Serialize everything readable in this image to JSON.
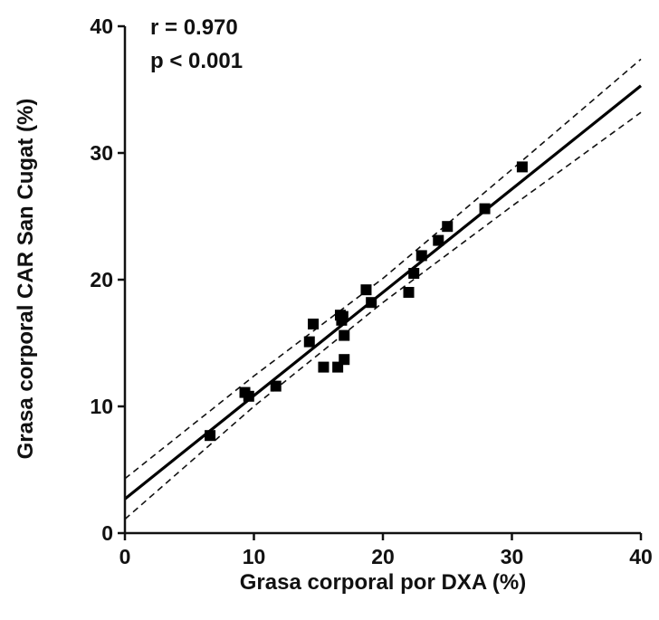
{
  "chart_data": {
    "type": "scatter",
    "xlabel": "Grasa corporal por DXA (%)",
    "ylabel": "Grasa corporal CAR San Cugat (%)",
    "xlim": [
      0,
      40
    ],
    "ylim": [
      0,
      40
    ],
    "x_ticks": [
      "0",
      "10",
      "20",
      "30",
      "40"
    ],
    "y_ticks": [
      "0",
      "10",
      "20",
      "30",
      "40"
    ],
    "grid": false,
    "annotations": [
      "r = 0.970",
      "p < 0.001"
    ],
    "points": [
      {
        "x": 6.6,
        "y": 7.7
      },
      {
        "x": 9.3,
        "y": 11.1
      },
      {
        "x": 9.6,
        "y": 10.8
      },
      {
        "x": 11.7,
        "y": 11.6
      },
      {
        "x": 14.3,
        "y": 15.1
      },
      {
        "x": 14.6,
        "y": 16.5
      },
      {
        "x": 15.4,
        "y": 13.1
      },
      {
        "x": 16.5,
        "y": 13.1
      },
      {
        "x": 16.7,
        "y": 17.2
      },
      {
        "x": 16.8,
        "y": 16.8
      },
      {
        "x": 16.9,
        "y": 17.1
      },
      {
        "x": 17.0,
        "y": 15.6
      },
      {
        "x": 17.0,
        "y": 13.7
      },
      {
        "x": 18.7,
        "y": 19.2
      },
      {
        "x": 19.1,
        "y": 18.2
      },
      {
        "x": 22.0,
        "y": 19.0
      },
      {
        "x": 22.4,
        "y": 20.5
      },
      {
        "x": 23.0,
        "y": 21.9
      },
      {
        "x": 24.3,
        "y": 23.1
      },
      {
        "x": 25.0,
        "y": 24.2
      },
      {
        "x": 27.9,
        "y": 25.6
      },
      {
        "x": 30.8,
        "y": 28.9
      }
    ],
    "fit_line": {
      "x": [
        0,
        40
      ],
      "y": [
        2.7,
        35.3
      ]
    },
    "ci_upper": {
      "x": [
        0,
        10,
        20,
        30,
        40
      ],
      "y": [
        4.3,
        12.4,
        20.1,
        28.7,
        37.4
      ]
    },
    "ci_lower": {
      "x": [
        0,
        10,
        20,
        30,
        40
      ],
      "y": [
        1.1,
        10.0,
        18.2,
        25.8,
        33.2
      ]
    }
  }
}
